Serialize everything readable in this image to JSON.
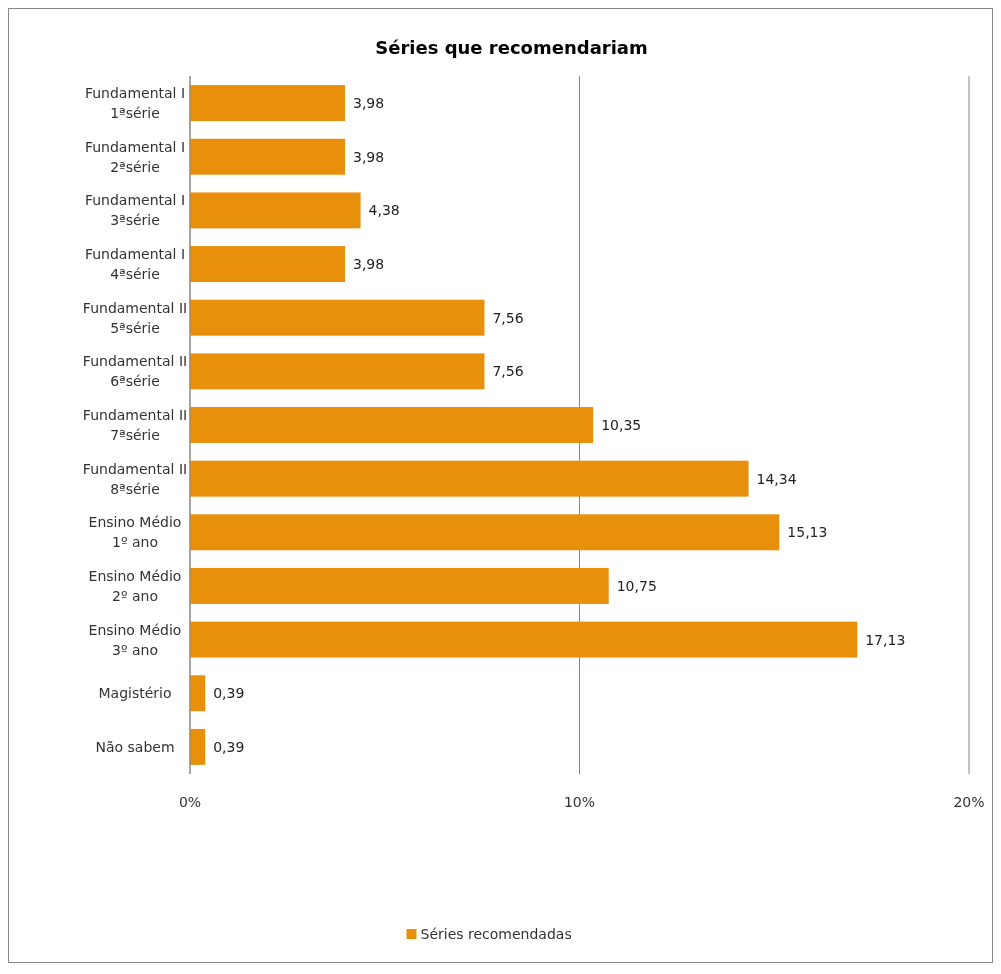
{
  "chart_data": {
    "type": "bar",
    "title": "Séries que recomendariam",
    "orientation": "horizontal",
    "categories": [
      "Fundamental I\n1ªsérie",
      "Fundamental I\n2ªsérie",
      "Fundamental I\n3ªsérie",
      "Fundamental I\n4ªsérie",
      "Fundamental II\n5ªsérie",
      "Fundamental II\n6ªsérie",
      "Fundamental II\n7ªsérie",
      "Fundamental II\n8ªsérie",
      "Ensino Médio\n1º ano",
      "Ensino Médio\n2º ano",
      "Ensino Médio\n3º ano",
      "Magistério",
      "Não sabem"
    ],
    "series": [
      {
        "name": "Séries recomendadas",
        "color": "#e8900c",
        "values": [
          3.98,
          3.98,
          4.38,
          3.98,
          7.56,
          7.56,
          10.35,
          14.34,
          15.13,
          10.75,
          17.13,
          0.39,
          0.39
        ],
        "value_labels": [
          "3,98",
          "3,98",
          "4,38",
          "3,98",
          "7,56",
          "7,56",
          "10,35",
          "14,34",
          "15,13",
          "10,75",
          "17,13",
          "0,39",
          "0,39"
        ]
      }
    ],
    "xlim": [
      0,
      20
    ],
    "xticks": [
      {
        "value": 0,
        "label": "0%"
      },
      {
        "value": 10,
        "label": "10%"
      },
      {
        "value": 20,
        "label": "20%"
      }
    ],
    "grid": "x",
    "legend": "bottom"
  }
}
